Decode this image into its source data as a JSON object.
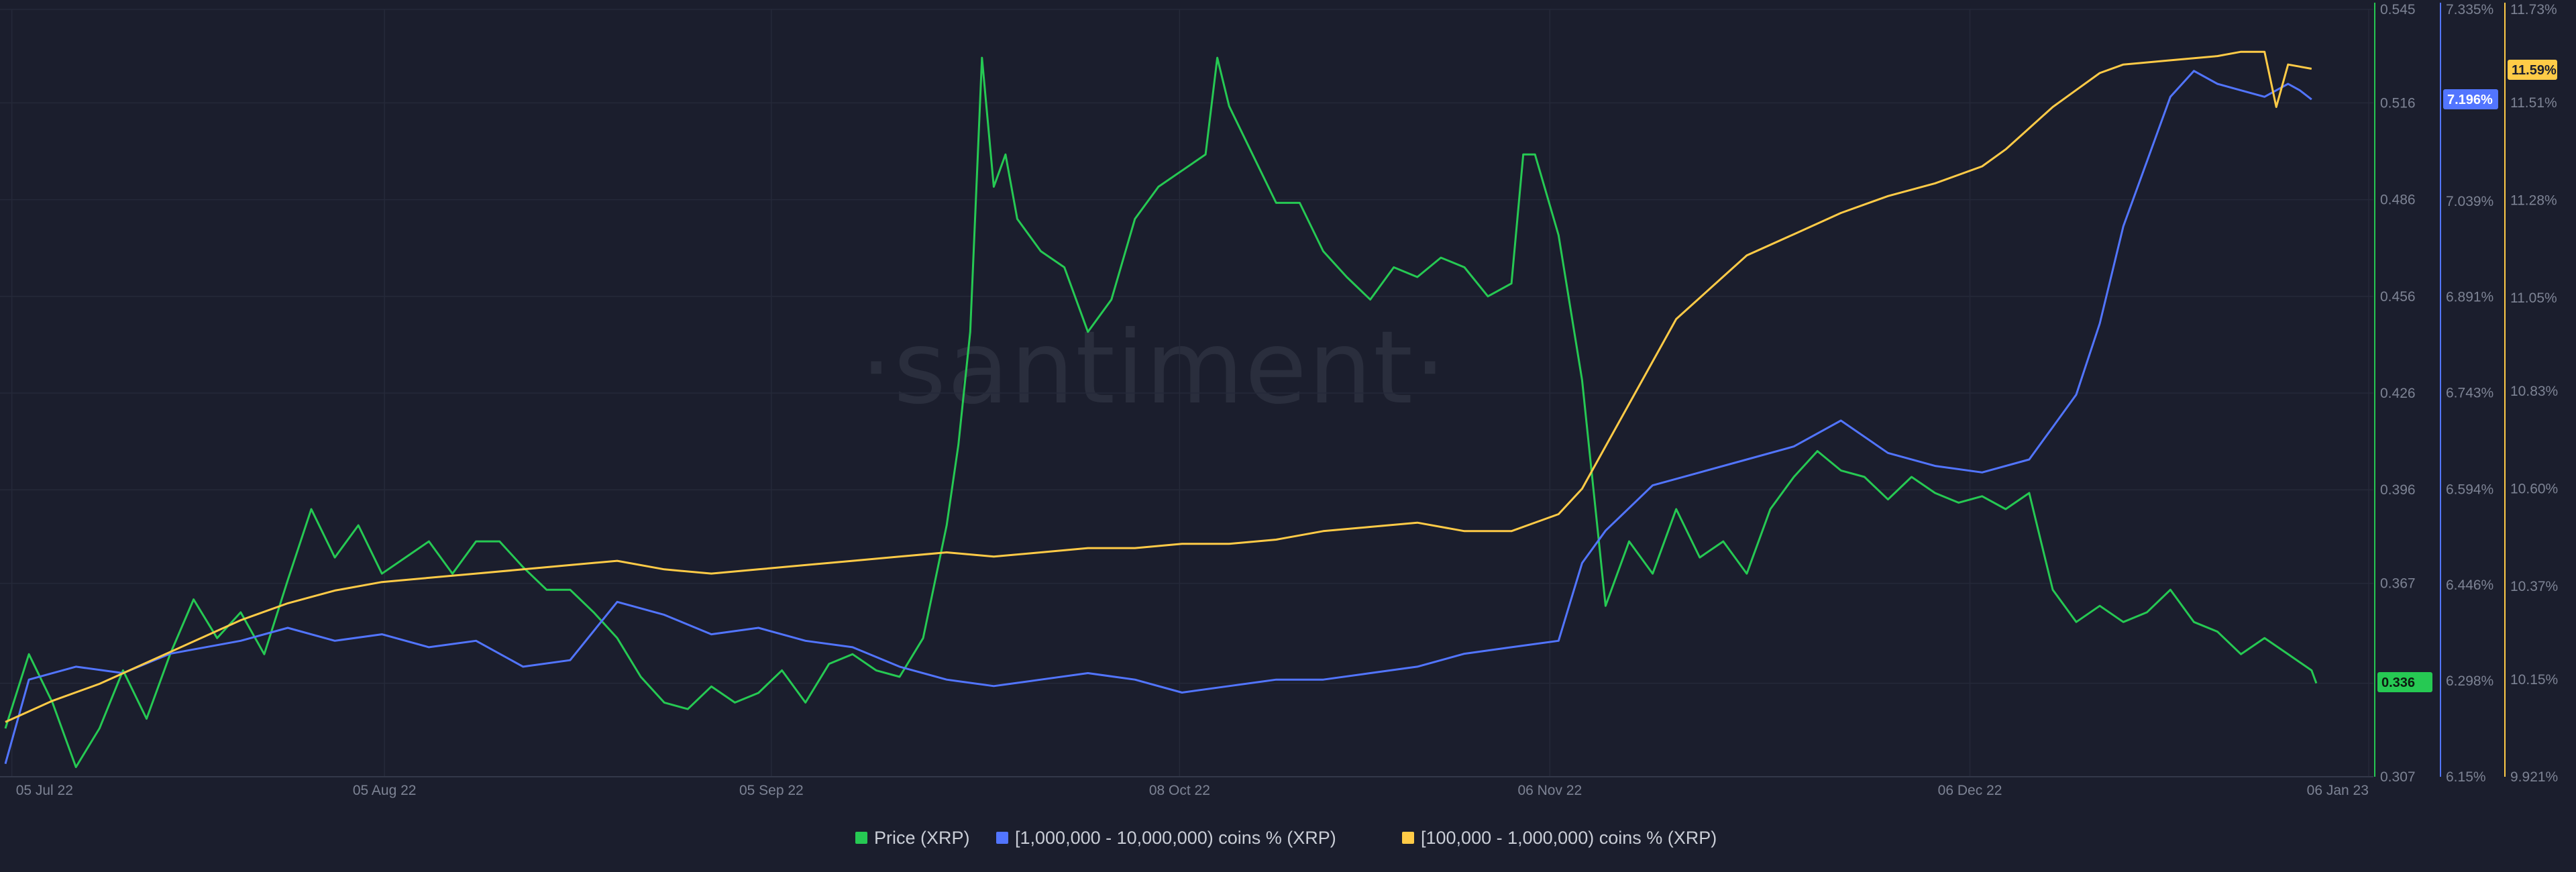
{
  "watermark": "·santiment·",
  "chart_data": {
    "type": "line",
    "x_labels": [
      "05 Jul 22",
      "05 Aug 22",
      "05 Sep 22",
      "08 Oct 22",
      "06 Nov 22",
      "06 Dec 22",
      "06 Jan 23"
    ],
    "x_range": [
      "2022-07-05",
      "2023-01-06"
    ],
    "axes": {
      "price": {
        "ticks": [
          "0.545",
          "0.516",
          "0.486",
          "0.456",
          "0.426",
          "0.396",
          "0.367",
          "0.336",
          "0.307"
        ],
        "range": [
          0.307,
          0.545
        ],
        "color": "#26c953"
      },
      "large_holders": {
        "ticks": [
          "7.335%",
          "7.196%",
          "7.039%",
          "6.891%",
          "6.743%",
          "6.594%",
          "6.446%",
          "6.298%",
          "6.15%"
        ],
        "range": [
          6.15,
          7.335
        ],
        "color": "#5275ff"
      },
      "mid_holders": {
        "ticks": [
          "11.73%",
          "11.59%",
          "11.51%",
          "11.28%",
          "11.05%",
          "10.83%",
          "10.60%",
          "10.37%",
          "10.15%",
          "9.921%"
        ],
        "range": [
          9.921,
          11.73
        ],
        "color": "#ffcb47"
      }
    },
    "current_values": {
      "price": "0.336",
      "large_holders": "7.196%",
      "mid_holders": "11.59%"
    },
    "series": [
      {
        "name": "Price (XRP)",
        "axis": "price",
        "color": "#26c953",
        "points": [
          [
            0,
            0.322
          ],
          [
            0.01,
            0.345
          ],
          [
            0.02,
            0.33
          ],
          [
            0.03,
            0.31
          ],
          [
            0.04,
            0.322
          ],
          [
            0.05,
            0.34
          ],
          [
            0.06,
            0.325
          ],
          [
            0.07,
            0.345
          ],
          [
            0.08,
            0.362
          ],
          [
            0.09,
            0.35
          ],
          [
            0.1,
            0.358
          ],
          [
            0.11,
            0.345
          ],
          [
            0.12,
            0.368
          ],
          [
            0.13,
            0.39
          ],
          [
            0.14,
            0.375
          ],
          [
            0.15,
            0.385
          ],
          [
            0.16,
            0.37
          ],
          [
            0.17,
            0.375
          ],
          [
            0.18,
            0.38
          ],
          [
            0.19,
            0.37
          ],
          [
            0.2,
            0.38
          ],
          [
            0.21,
            0.38
          ],
          [
            0.22,
            0.372
          ],
          [
            0.23,
            0.365
          ],
          [
            0.24,
            0.365
          ],
          [
            0.25,
            0.358
          ],
          [
            0.26,
            0.35
          ],
          [
            0.27,
            0.338
          ],
          [
            0.28,
            0.33
          ],
          [
            0.29,
            0.328
          ],
          [
            0.3,
            0.335
          ],
          [
            0.31,
            0.33
          ],
          [
            0.32,
            0.333
          ],
          [
            0.33,
            0.34
          ],
          [
            0.34,
            0.33
          ],
          [
            0.35,
            0.342
          ],
          [
            0.36,
            0.345
          ],
          [
            0.37,
            0.34
          ],
          [
            0.38,
            0.338
          ],
          [
            0.39,
            0.35
          ],
          [
            0.4,
            0.385
          ],
          [
            0.405,
            0.41
          ],
          [
            0.41,
            0.445
          ],
          [
            0.415,
            0.53
          ],
          [
            0.42,
            0.49
          ],
          [
            0.425,
            0.5
          ],
          [
            0.43,
            0.48
          ],
          [
            0.44,
            0.47
          ],
          [
            0.45,
            0.465
          ],
          [
            0.46,
            0.445
          ],
          [
            0.47,
            0.455
          ],
          [
            0.48,
            0.48
          ],
          [
            0.49,
            0.49
          ],
          [
            0.5,
            0.495
          ],
          [
            0.51,
            0.5
          ],
          [
            0.515,
            0.53
          ],
          [
            0.52,
            0.515
          ],
          [
            0.53,
            0.5
          ],
          [
            0.54,
            0.485
          ],
          [
            0.55,
            0.485
          ],
          [
            0.56,
            0.47
          ],
          [
            0.57,
            0.462
          ],
          [
            0.58,
            0.455
          ],
          [
            0.59,
            0.465
          ],
          [
            0.6,
            0.462
          ],
          [
            0.61,
            0.468
          ],
          [
            0.62,
            0.465
          ],
          [
            0.63,
            0.456
          ],
          [
            0.64,
            0.46
          ],
          [
            0.645,
            0.5
          ],
          [
            0.65,
            0.5
          ],
          [
            0.66,
            0.475
          ],
          [
            0.67,
            0.43
          ],
          [
            0.675,
            0.395
          ],
          [
            0.68,
            0.36
          ],
          [
            0.69,
            0.38
          ],
          [
            0.7,
            0.37
          ],
          [
            0.71,
            0.39
          ],
          [
            0.72,
            0.375
          ],
          [
            0.73,
            0.38
          ],
          [
            0.74,
            0.37
          ],
          [
            0.75,
            0.39
          ],
          [
            0.76,
            0.4
          ],
          [
            0.77,
            0.408
          ],
          [
            0.78,
            0.402
          ],
          [
            0.79,
            0.4
          ],
          [
            0.8,
            0.393
          ],
          [
            0.81,
            0.4
          ],
          [
            0.82,
            0.395
          ],
          [
            0.83,
            0.392
          ],
          [
            0.84,
            0.394
          ],
          [
            0.85,
            0.39
          ],
          [
            0.86,
            0.395
          ],
          [
            0.865,
            0.38
          ],
          [
            0.87,
            0.365
          ],
          [
            0.88,
            0.355
          ],
          [
            0.89,
            0.36
          ],
          [
            0.9,
            0.355
          ],
          [
            0.91,
            0.358
          ],
          [
            0.92,
            0.365
          ],
          [
            0.93,
            0.355
          ],
          [
            0.94,
            0.352
          ],
          [
            0.95,
            0.345
          ],
          [
            0.96,
            0.35
          ],
          [
            0.97,
            0.345
          ],
          [
            0.98,
            0.34
          ],
          [
            0.982,
            0.336
          ]
        ]
      },
      {
        "name": "[1,000,000 - 10,000,000) coins % (XRP)",
        "axis": "large_holders",
        "color": "#5275ff",
        "points": [
          [
            0,
            6.17
          ],
          [
            0.01,
            6.3
          ],
          [
            0.03,
            6.32
          ],
          [
            0.05,
            6.31
          ],
          [
            0.07,
            6.34
          ],
          [
            0.1,
            6.36
          ],
          [
            0.12,
            6.38
          ],
          [
            0.14,
            6.36
          ],
          [
            0.16,
            6.37
          ],
          [
            0.18,
            6.35
          ],
          [
            0.2,
            6.36
          ],
          [
            0.22,
            6.32
          ],
          [
            0.24,
            6.33
          ],
          [
            0.26,
            6.42
          ],
          [
            0.28,
            6.4
          ],
          [
            0.3,
            6.37
          ],
          [
            0.32,
            6.38
          ],
          [
            0.34,
            6.36
          ],
          [
            0.36,
            6.35
          ],
          [
            0.38,
            6.32
          ],
          [
            0.4,
            6.3
          ],
          [
            0.42,
            6.29
          ],
          [
            0.44,
            6.3
          ],
          [
            0.46,
            6.31
          ],
          [
            0.48,
            6.3
          ],
          [
            0.5,
            6.28
          ],
          [
            0.52,
            6.29
          ],
          [
            0.54,
            6.3
          ],
          [
            0.56,
            6.3
          ],
          [
            0.58,
            6.31
          ],
          [
            0.6,
            6.32
          ],
          [
            0.62,
            6.34
          ],
          [
            0.64,
            6.35
          ],
          [
            0.66,
            6.36
          ],
          [
            0.67,
            6.48
          ],
          [
            0.68,
            6.53
          ],
          [
            0.7,
            6.6
          ],
          [
            0.72,
            6.62
          ],
          [
            0.74,
            6.64
          ],
          [
            0.76,
            6.66
          ],
          [
            0.78,
            6.7
          ],
          [
            0.8,
            6.65
          ],
          [
            0.82,
            6.63
          ],
          [
            0.84,
            6.62
          ],
          [
            0.86,
            6.64
          ],
          [
            0.87,
            6.69
          ],
          [
            0.88,
            6.74
          ],
          [
            0.89,
            6.85
          ],
          [
            0.9,
            7.0
          ],
          [
            0.91,
            7.1
          ],
          [
            0.92,
            7.2
          ],
          [
            0.93,
            7.24
          ],
          [
            0.94,
            7.22
          ],
          [
            0.95,
            7.21
          ],
          [
            0.96,
            7.2
          ],
          [
            0.97,
            7.22
          ],
          [
            0.975,
            7.21
          ],
          [
            0.98,
            7.196
          ]
        ]
      },
      {
        "name": "[100,000  - 1,000,000) coins % (XRP)",
        "axis": "mid_holders",
        "color": "#ffcb47",
        "points": [
          [
            0,
            10.05
          ],
          [
            0.02,
            10.1
          ],
          [
            0.04,
            10.14
          ],
          [
            0.06,
            10.19
          ],
          [
            0.08,
            10.24
          ],
          [
            0.1,
            10.29
          ],
          [
            0.12,
            10.33
          ],
          [
            0.14,
            10.36
          ],
          [
            0.16,
            10.38
          ],
          [
            0.18,
            10.39
          ],
          [
            0.2,
            10.4
          ],
          [
            0.22,
            10.41
          ],
          [
            0.24,
            10.42
          ],
          [
            0.26,
            10.43
          ],
          [
            0.28,
            10.41
          ],
          [
            0.3,
            10.4
          ],
          [
            0.32,
            10.41
          ],
          [
            0.34,
            10.42
          ],
          [
            0.36,
            10.43
          ],
          [
            0.38,
            10.44
          ],
          [
            0.4,
            10.45
          ],
          [
            0.42,
            10.44
          ],
          [
            0.44,
            10.45
          ],
          [
            0.46,
            10.46
          ],
          [
            0.48,
            10.46
          ],
          [
            0.5,
            10.47
          ],
          [
            0.52,
            10.47
          ],
          [
            0.54,
            10.48
          ],
          [
            0.56,
            10.5
          ],
          [
            0.58,
            10.51
          ],
          [
            0.6,
            10.52
          ],
          [
            0.62,
            10.5
          ],
          [
            0.64,
            10.5
          ],
          [
            0.66,
            10.54
          ],
          [
            0.67,
            10.6
          ],
          [
            0.68,
            10.7
          ],
          [
            0.69,
            10.8
          ],
          [
            0.7,
            10.9
          ],
          [
            0.71,
            11.0
          ],
          [
            0.72,
            11.05
          ],
          [
            0.73,
            11.1
          ],
          [
            0.74,
            11.15
          ],
          [
            0.76,
            11.2
          ],
          [
            0.78,
            11.25
          ],
          [
            0.8,
            11.29
          ],
          [
            0.82,
            11.32
          ],
          [
            0.84,
            11.36
          ],
          [
            0.85,
            11.4
          ],
          [
            0.86,
            11.45
          ],
          [
            0.87,
            11.5
          ],
          [
            0.88,
            11.54
          ],
          [
            0.89,
            11.58
          ],
          [
            0.9,
            11.6
          ],
          [
            0.92,
            11.61
          ],
          [
            0.94,
            11.62
          ],
          [
            0.95,
            11.63
          ],
          [
            0.96,
            11.63
          ],
          [
            0.965,
            11.5
          ],
          [
            0.97,
            11.6
          ],
          [
            0.98,
            11.59
          ]
        ]
      }
    ],
    "legend": {
      "placement": "bottom-center"
    },
    "grid": true
  }
}
